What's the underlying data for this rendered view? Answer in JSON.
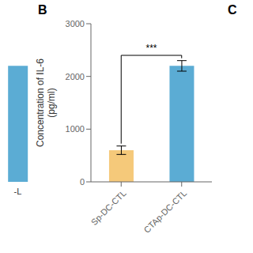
{
  "chart_data": [
    {
      "type": "bar",
      "categories": [
        "-L"
      ],
      "values": [
        2200
      ],
      "color": "#5BACD4",
      "ylim": [
        0,
        3000
      ],
      "tick_labels": "x"
    },
    {
      "type": "bar",
      "title": "B",
      "categories": [
        "Sp-DC-CTL",
        "CTAp-DC-CTL"
      ],
      "values": [
        600,
        2200
      ],
      "errors": [
        80,
        100
      ],
      "colors": [
        "#F5C97A",
        "#5BACD4"
      ],
      "ylabel": "Concentration of IL-6\n(pg/ml)",
      "ylim": [
        0,
        3000
      ],
      "yticks": [
        0,
        1000,
        2000,
        3000
      ],
      "grid": false,
      "annotations": [
        {
          "text": "***",
          "x": [
            "Sp-DC-CTL",
            "CTAp-DC-CTL"
          ],
          "y": 2400
        },
        {
          "text": "C"
        }
      ]
    }
  ]
}
